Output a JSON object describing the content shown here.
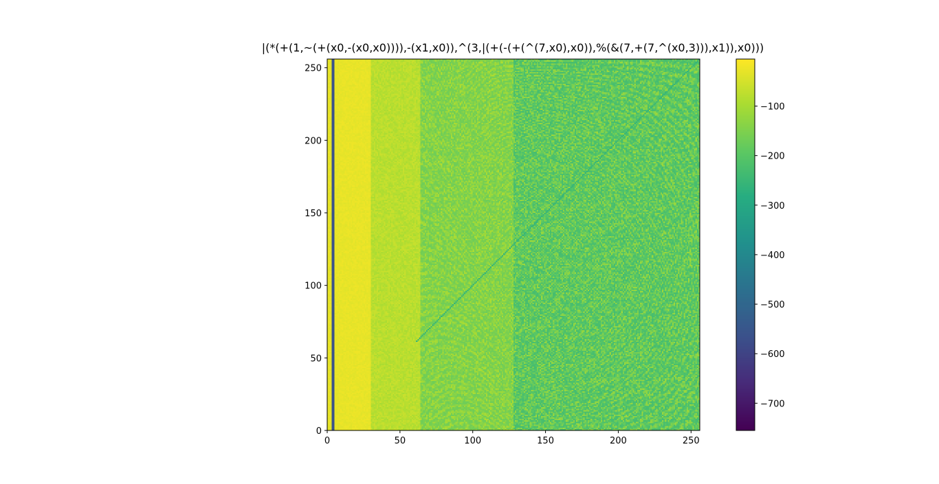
{
  "chart_data": {
    "type": "heatmap",
    "title": "|(*(+(1,~(+(x0,-(x0,x0)))),-(x1,x0)),^(3,|(+(-(+(^(7,x0),x0)),%(&(7,+(7,^(x0,3))),x1)),x0)))",
    "xlabel": "",
    "ylabel": "",
    "xlim": [
      0,
      256
    ],
    "ylim": [
      0,
      256
    ],
    "x_ticks": [
      0,
      50,
      100,
      150,
      200,
      250
    ],
    "y_ticks": [
      0,
      50,
      100,
      150,
      200,
      250
    ],
    "grid": false,
    "colormap": "viridis",
    "colorbar": {
      "range": [
        -755,
        -5
      ],
      "ticks": [
        -100,
        -200,
        -300,
        -400,
        -500,
        -600,
        -700
      ],
      "tick_labels": [
        "−100",
        "−200",
        "−300",
        "−400",
        "−500",
        "−600",
        "−700"
      ]
    },
    "description_of_values": "Values mostly between about -250 and -5; near-yellow band for x < 30, a dark blue vertical line near x = 4, increasing green interference patterns for x > 128 and a diagonal line x = y."
  }
}
